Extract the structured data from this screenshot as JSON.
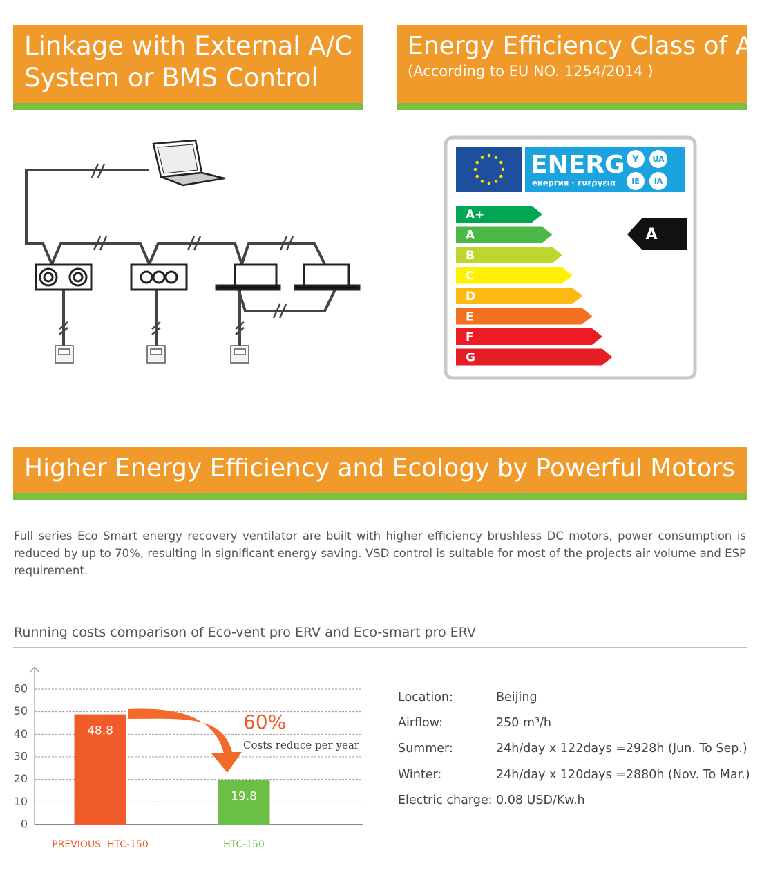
{
  "header_left": {
    "lines": [
      "Linkage with External A/C",
      "System or BMS Control"
    ]
  },
  "header_right": {
    "title": "Energy Efficiency Class of A",
    "subtitle": "(According to EU NO. 1254/2014 )"
  },
  "energy_label": {
    "brand": "ENERG",
    "subtitle": "енергия · ενεργεια",
    "badges": [
      "Y",
      "UA",
      "IE",
      "IA"
    ],
    "classes": [
      {
        "label": "A+",
        "color": "#00a651"
      },
      {
        "label": "A",
        "color": "#4cb848"
      },
      {
        "label": "B",
        "color": "#bed630"
      },
      {
        "label": "C",
        "color": "#fff200"
      },
      {
        "label": "D",
        "color": "#fdb913"
      },
      {
        "label": "E",
        "color": "#f37021"
      },
      {
        "label": "F",
        "color": "#ed1c24"
      },
      {
        "label": "G",
        "color": "#e51e25"
      }
    ],
    "rating": "A"
  },
  "section_header": {
    "title": "Higher Energy Efficiency and Ecology by Powerful Motors"
  },
  "paragraph": "Full series Eco Smart energy recovery ventilator are built with higher efficiency brushless DC motors, power consumption is reduced by up to 70%, resulting in significant energy saving. VSD control is suitable for most of the projects air volume and ESP requirement.",
  "comparison_title": "Running costs comparison of Eco-vent pro ERV and Eco-smart pro ERV",
  "chart_data": {
    "type": "bar",
    "categories": [
      "PREVIOUS  HTC-150",
      "HTC-150"
    ],
    "values": [
      48.8,
      19.8
    ],
    "colors": [
      "#f15a29",
      "#6cbf45"
    ],
    "ylim": [
      0,
      60
    ],
    "yticks": [
      0,
      10,
      20,
      30,
      40,
      50,
      60
    ],
    "grid": true,
    "annotations": [
      "60%",
      "Costs reduce per year"
    ]
  },
  "info_table": {
    "rows": [
      [
        "Location:",
        "Beijing"
      ],
      [
        "Airflow:",
        "250 m³/h"
      ],
      [
        "Summer:",
        "24h/day x 122days =2928h (Jun. To Sep.)"
      ],
      [
        "Winter:",
        "24h/day x 120days =2880h (Nov. To Mar.)"
      ],
      [
        "Electric charge:",
        "0.08 USD/Kw.h"
      ]
    ]
  }
}
